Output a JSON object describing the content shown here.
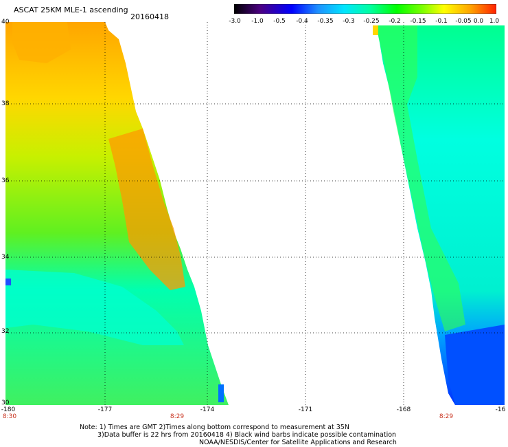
{
  "header": {
    "title": "ASCAT 25KM MLE-1 ascending",
    "date": "20160418"
  },
  "colorbar": {
    "labels": [
      "-3.0",
      "-1.0",
      "-0.5",
      "-0.4",
      "-0.35",
      "-0.3",
      "-0.25",
      "-0.2",
      "-0.15",
      "-0.1",
      "-0.05",
      "0.0",
      "1.0"
    ]
  },
  "axes": {
    "lat_ticks": [
      "40",
      "38",
      "36",
      "34",
      "32",
      "30"
    ],
    "lon_ticks": [
      "-180",
      "-177",
      "-174",
      "-171",
      "-168",
      "-16"
    ],
    "time_labels": [
      "8:30",
      "8:29",
      "8:29"
    ]
  },
  "notes": {
    "line1": "Note: 1) Times are GMT 2)Times along bottom correspond to measurement at 35N",
    "line2": "3)Data buffer is 22 hrs from 20160418 4) Black wind barbs indicate possible contamination",
    "line3": "NOAA/NESDIS/Center for Satellite Applications and Research"
  },
  "colors": {
    "colorbar_stops": [
      "#000000",
      "#4b0082",
      "#0000ff",
      "#1e90ff",
      "#00bfff",
      "#00ffff",
      "#00ff7f",
      "#00ff00",
      "#7fff00",
      "#ffff00",
      "#ffa500",
      "#ff4500",
      "#ff0000"
    ]
  }
}
